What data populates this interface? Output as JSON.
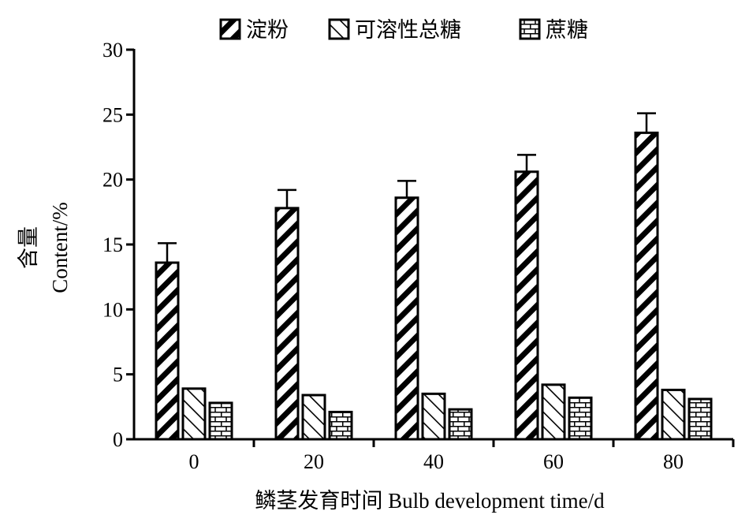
{
  "chart_data": {
    "type": "bar",
    "categories": [
      "0",
      "20",
      "40",
      "60",
      "80"
    ],
    "series": [
      {
        "name": "淀粉",
        "pattern": "diagonal-dense",
        "values": [
          13.6,
          17.8,
          18.6,
          20.6,
          23.6
        ],
        "errors": [
          1.5,
          1.4,
          1.3,
          1.3,
          1.5
        ]
      },
      {
        "name": "可溶性总糖",
        "pattern": "diagonal-sparse",
        "values": [
          3.9,
          3.4,
          3.5,
          4.2,
          3.8
        ],
        "errors": [
          0.05,
          0.05,
          0.05,
          0.05,
          0.05
        ]
      },
      {
        "name": "蔗糖",
        "pattern": "brick",
        "values": [
          2.8,
          2.1,
          2.3,
          3.2,
          3.1
        ],
        "errors": [
          0,
          0,
          0,
          0,
          0
        ]
      }
    ],
    "ylim": [
      0,
      30
    ],
    "yticks": [
      "0",
      "5",
      "10",
      "15",
      "20",
      "25",
      "30"
    ],
    "xlabel": "鳞茎发育时间 Bulb development time/d",
    "ylabel_cn": "含量",
    "ylabel_en": "Content/%",
    "legend_position": "top",
    "grid": false,
    "colors": {
      "ink": "#000000",
      "background": "#ffffff"
    }
  }
}
